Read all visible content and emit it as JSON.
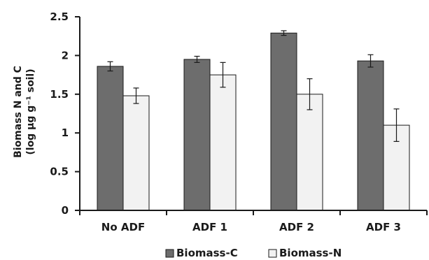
{
  "chart_data": {
    "type": "bar",
    "categories": [
      "No ADF",
      "ADF 1",
      "ADF 2",
      "ADF 3"
    ],
    "series": [
      {
        "name": "Biomass-C",
        "values": [
          1.86,
          1.95,
          2.29,
          1.93
        ],
        "errors": [
          0.06,
          0.04,
          0.03,
          0.08
        ],
        "color": "#6d6d6d"
      },
      {
        "name": "Biomass-N",
        "values": [
          1.48,
          1.75,
          1.5,
          1.1
        ],
        "errors": [
          0.1,
          0.16,
          0.2,
          0.21
        ],
        "color": "#f2f2f2"
      }
    ],
    "ylabel": "Biomass N and C (log μg g⁻¹ soil)",
    "ylabel_lines": [
      "Biomass N and C",
      "(log μg g⁻¹ soil)"
    ],
    "xlabel": "",
    "ylim": [
      0,
      2.5
    ],
    "yticks": [
      "0",
      "0.5",
      "1",
      "1.5",
      "2",
      "2.5"
    ],
    "grid": false,
    "legend_position": "bottom"
  }
}
